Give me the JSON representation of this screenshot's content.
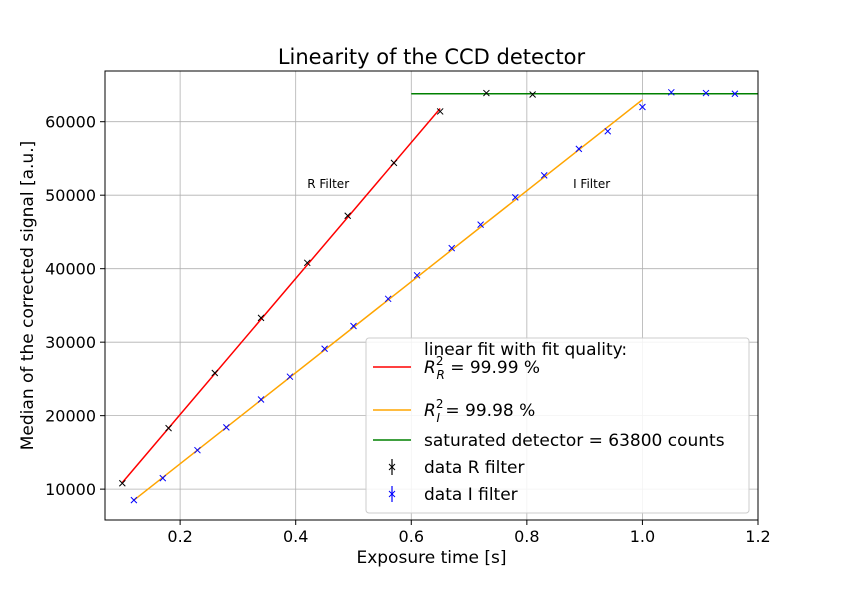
{
  "chart_data": {
    "type": "scatter",
    "title": "Linearity of the CCD detector",
    "xlabel": "Exposure time [s]",
    "ylabel": "Median of the corrected signal [a.u.]",
    "xlim": [
      0.07,
      1.2
    ],
    "ylim": [
      5800,
      66900
    ],
    "grid": true,
    "legend_position": "lower-right",
    "x_ticks": [
      0.2,
      0.4,
      0.6,
      0.8,
      1.0,
      1.2
    ],
    "x_tick_labels": [
      "0.2",
      "0.4",
      "0.6",
      "0.8",
      "1.0",
      "1.2"
    ],
    "y_ticks": [
      10000,
      20000,
      30000,
      40000,
      50000,
      60000
    ],
    "y_tick_labels": [
      "10000",
      "20000",
      "30000",
      "40000",
      "50000",
      "60000"
    ],
    "annotations": [
      {
        "text": "R Filter",
        "x": 0.42,
        "y": 51000
      },
      {
        "text": "I Filter",
        "x": 0.88,
        "y": 51000
      }
    ],
    "legend_heading": "linear fit with fit quality:",
    "series": [
      {
        "kind": "line",
        "color": "#ff0000",
        "legend_label": {
          "var": "R",
          "sub": "R",
          "sup": "2",
          "rest": " = 99.99 %"
        },
        "x": [
          0.1,
          0.65
        ],
        "y": [
          10900,
          61800
        ]
      },
      {
        "kind": "line",
        "color": "#ffa500",
        "legend_label": {
          "var": "R",
          "sub": "I",
          "sup": "2",
          "rest": " = 99.98 %"
        },
        "x": [
          0.12,
          1.0
        ],
        "y": [
          8500,
          63000
        ]
      },
      {
        "kind": "line",
        "color": "#008000",
        "legend_label": {
          "plain": "saturated detector = 63800 counts"
        },
        "x": [
          0.6,
          1.2
        ],
        "y": [
          63800,
          63800
        ]
      },
      {
        "kind": "points",
        "color": "#000000",
        "legend_label": {
          "plain": "data R filter"
        },
        "x": [
          0.1,
          0.18,
          0.26,
          0.34,
          0.42,
          0.49,
          0.57,
          0.65,
          0.73,
          0.81
        ],
        "y": [
          10800,
          18300,
          25800,
          33300,
          40800,
          47200,
          54400,
          61400,
          63900,
          63700
        ]
      },
      {
        "kind": "points",
        "color": "#0000ff",
        "legend_label": {
          "plain": "data I filter"
        },
        "x": [
          0.12,
          0.17,
          0.23,
          0.28,
          0.34,
          0.39,
          0.45,
          0.5,
          0.56,
          0.61,
          0.67,
          0.72,
          0.78,
          0.83,
          0.89,
          0.94,
          1.0,
          1.05,
          1.11,
          1.16
        ],
        "y": [
          8500,
          11500,
          15300,
          18400,
          22200,
          25300,
          29100,
          32200,
          35900,
          39100,
          42800,
          46000,
          49700,
          52700,
          56300,
          58700,
          62000,
          64000,
          63900,
          63800
        ]
      }
    ]
  }
}
